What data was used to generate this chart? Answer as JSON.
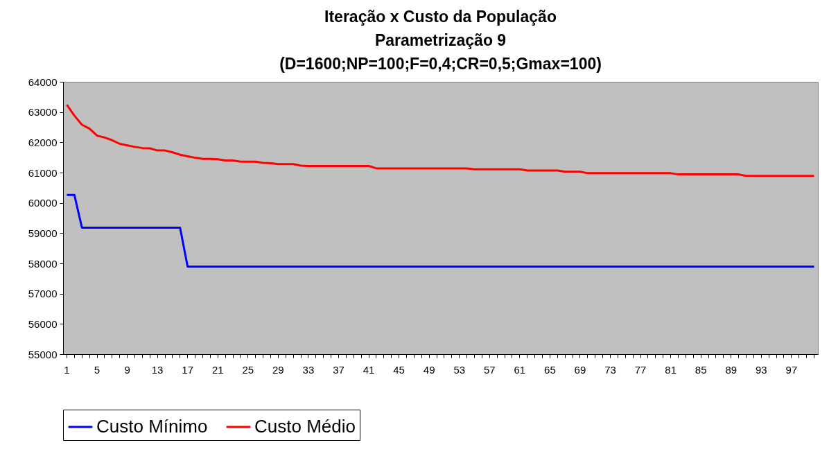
{
  "chart_data": {
    "type": "line",
    "title": "Iteração x Custo da População\nParametrização 9\n(D=1600;NP=100;F=0,4;CR=0,5;Gmax=100)",
    "categories": [
      "1",
      null,
      null,
      null,
      "5",
      null,
      null,
      null,
      "9",
      null,
      null,
      null,
      "13",
      null,
      null,
      null,
      "17",
      null,
      null,
      null,
      "21",
      null,
      null,
      null,
      "25",
      null,
      null,
      null,
      "29",
      null,
      null,
      null,
      "33",
      null,
      null,
      null,
      "37",
      null,
      null,
      null,
      "41",
      null,
      null,
      null,
      "45",
      null,
      null,
      null,
      "49",
      null,
      null,
      null,
      "53",
      null,
      null,
      null,
      "57",
      null,
      null,
      null,
      "61",
      null,
      null,
      null,
      "65",
      null,
      null,
      null,
      "69",
      null,
      null,
      null,
      "73",
      null,
      null,
      null,
      "77",
      null,
      null,
      null,
      "81",
      null,
      null,
      null,
      "85",
      null,
      null,
      null,
      "89",
      null,
      null,
      null,
      "93",
      null,
      null,
      null,
      "97",
      null,
      null,
      null
    ],
    "series": [
      {
        "name": "Custo Mínimo",
        "color": "#0000ff",
        "values": [
          60260,
          60260,
          59180,
          59180,
          59180,
          59180,
          59180,
          59180,
          59180,
          59180,
          59180,
          59180,
          59180,
          59180,
          59180,
          59180,
          57890,
          57890,
          57890,
          57890,
          57890,
          57890,
          57890,
          57890,
          57890,
          57890,
          57890,
          57890,
          57890,
          57890,
          57890,
          57890,
          57890,
          57890,
          57890,
          57890,
          57890,
          57890,
          57890,
          57890,
          57890,
          57890,
          57890,
          57890,
          57890,
          57890,
          57890,
          57890,
          57890,
          57890,
          57890,
          57890,
          57890,
          57890,
          57890,
          57890,
          57890,
          57890,
          57890,
          57890,
          57890,
          57890,
          57890,
          57890,
          57890,
          57890,
          57890,
          57890,
          57890,
          57890,
          57890,
          57890,
          57890,
          57890,
          57890,
          57890,
          57890,
          57890,
          57890,
          57890,
          57890,
          57890,
          57890,
          57890,
          57890,
          57890,
          57890,
          57890,
          57890,
          57890,
          57890,
          57890,
          57890,
          57890,
          57890,
          57890,
          57890,
          57890,
          57890,
          57890
        ]
      },
      {
        "name": "Custo Médio",
        "color": "#ff0000",
        "values": [
          63240,
          62880,
          62580,
          62450,
          62220,
          62160,
          62070,
          61950,
          61900,
          61850,
          61810,
          61800,
          61730,
          61730,
          61670,
          61590,
          61540,
          61490,
          61450,
          61450,
          61440,
          61400,
          61400,
          61360,
          61360,
          61360,
          61320,
          61310,
          61280,
          61280,
          61280,
          61230,
          61220,
          61220,
          61220,
          61220,
          61220,
          61220,
          61220,
          61220,
          61220,
          61140,
          61140,
          61140,
          61140,
          61140,
          61140,
          61140,
          61140,
          61140,
          61140,
          61140,
          61140,
          61140,
          61110,
          61110,
          61110,
          61110,
          61110,
          61110,
          61110,
          61070,
          61070,
          61070,
          61070,
          61070,
          61030,
          61030,
          61030,
          60980,
          60980,
          60980,
          60980,
          60980,
          60980,
          60980,
          60980,
          60980,
          60980,
          60980,
          60980,
          60940,
          60940,
          60940,
          60940,
          60940,
          60940,
          60940,
          60940,
          60940,
          60890,
          60890,
          60890,
          60890,
          60890,
          60890,
          60890,
          60890,
          60890,
          60890
        ]
      }
    ],
    "ylim": [
      55000,
      64000
    ],
    "yticks": [
      55000,
      56000,
      57000,
      58000,
      59000,
      60000,
      61000,
      62000,
      63000,
      64000
    ],
    "legend": "bottom",
    "marker": "none",
    "line_style": "solid"
  }
}
